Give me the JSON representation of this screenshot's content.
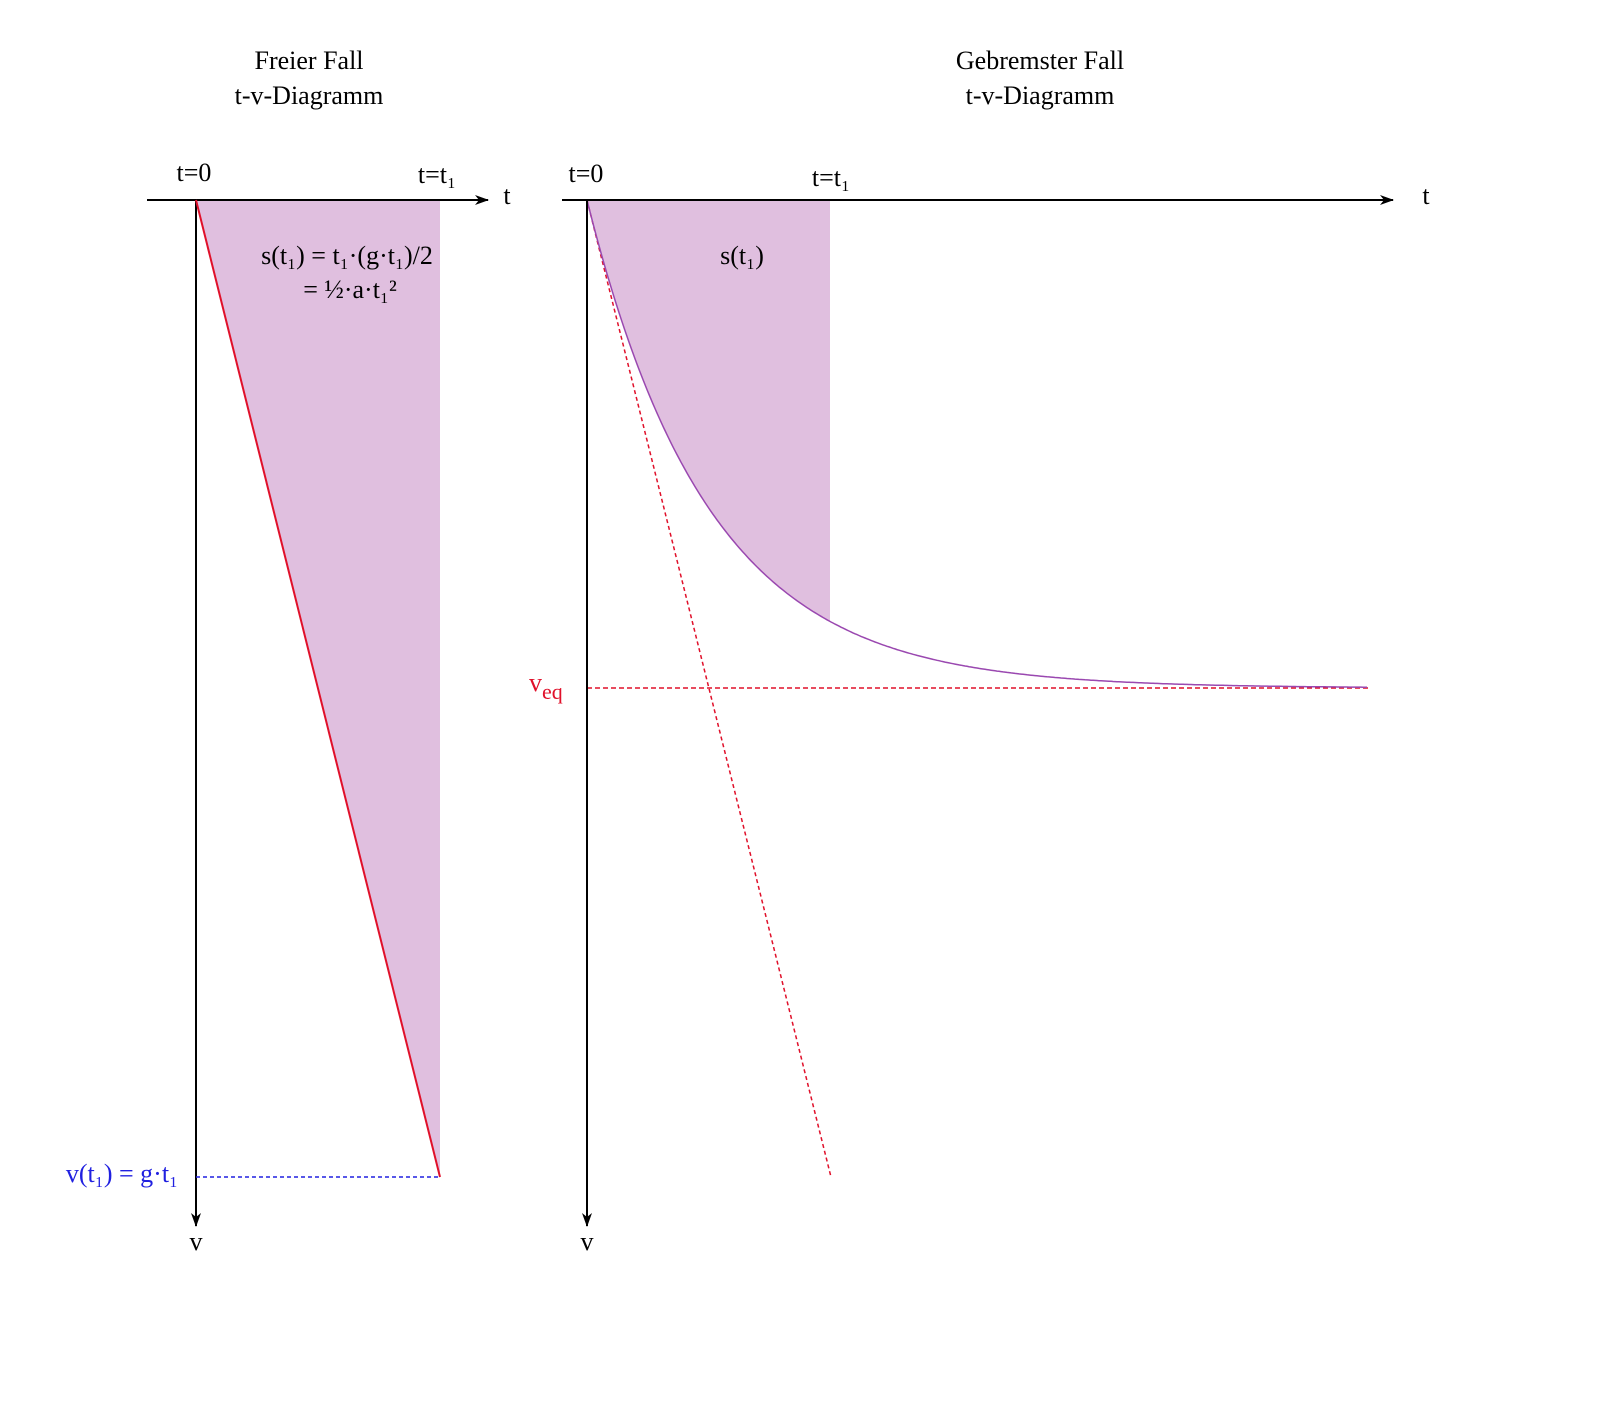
{
  "left": {
    "title": "Freier Fall",
    "subtitle": "t-v-Diagramm",
    "t0": "t=0",
    "t1": "t=t₁",
    "t_axis": "t",
    "v_axis": "v",
    "area_label_1": "s(t₁) = t₁·(g·t₁)/2",
    "area_label_2": "= ½·a·t₁²",
    "v_label": "v(t₁) = g·t₁"
  },
  "right": {
    "title": "Gebremster Fall",
    "subtitle": "t-v-Diagramm",
    "t0": "t=0",
    "t1": "t=t₁",
    "t_axis": "t",
    "v_axis": "v",
    "area_label": "s(t₁)",
    "veq": {
      "base": "v",
      "sub": "eq"
    }
  }
}
